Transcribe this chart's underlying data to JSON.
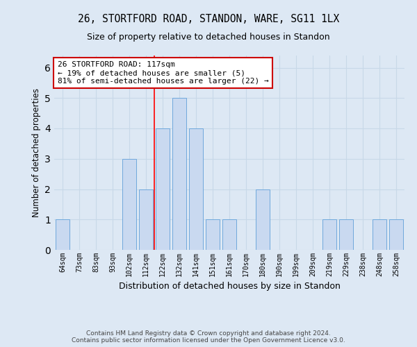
{
  "title1": "26, STORTFORD ROAD, STANDON, WARE, SG11 1LX",
  "title2": "Size of property relative to detached houses in Standon",
  "xlabel": "Distribution of detached houses by size in Standon",
  "ylabel": "Number of detached properties",
  "categories": [
    "64sqm",
    "73sqm",
    "83sqm",
    "93sqm",
    "102sqm",
    "112sqm",
    "122sqm",
    "132sqm",
    "141sqm",
    "151sqm",
    "161sqm",
    "170sqm",
    "180sqm",
    "190sqm",
    "199sqm",
    "209sqm",
    "219sqm",
    "229sqm",
    "238sqm",
    "248sqm",
    "258sqm"
  ],
  "values": [
    1,
    0,
    0,
    0,
    3,
    2,
    4,
    5,
    4,
    1,
    1,
    0,
    2,
    0,
    0,
    0,
    1,
    1,
    0,
    1,
    1
  ],
  "bar_color": "#c9d9f0",
  "bar_edge_color": "#6fa8dc",
  "grid_color": "#c8d8e8",
  "background_color": "#dde8f4",
  "annotation_text": "26 STORTFORD ROAD: 117sqm\n← 19% of detached houses are smaller (5)\n81% of semi-detached houses are larger (22) →",
  "annotation_box_color": "#ffffff",
  "annotation_box_edge": "#cc0000",
  "red_line_x": 5.5,
  "ylim": [
    0,
    6.4
  ],
  "yticks": [
    0,
    1,
    2,
    3,
    4,
    5,
    6
  ],
  "footer1": "Contains HM Land Registry data © Crown copyright and database right 2024.",
  "footer2": "Contains public sector information licensed under the Open Government Licence v3.0."
}
